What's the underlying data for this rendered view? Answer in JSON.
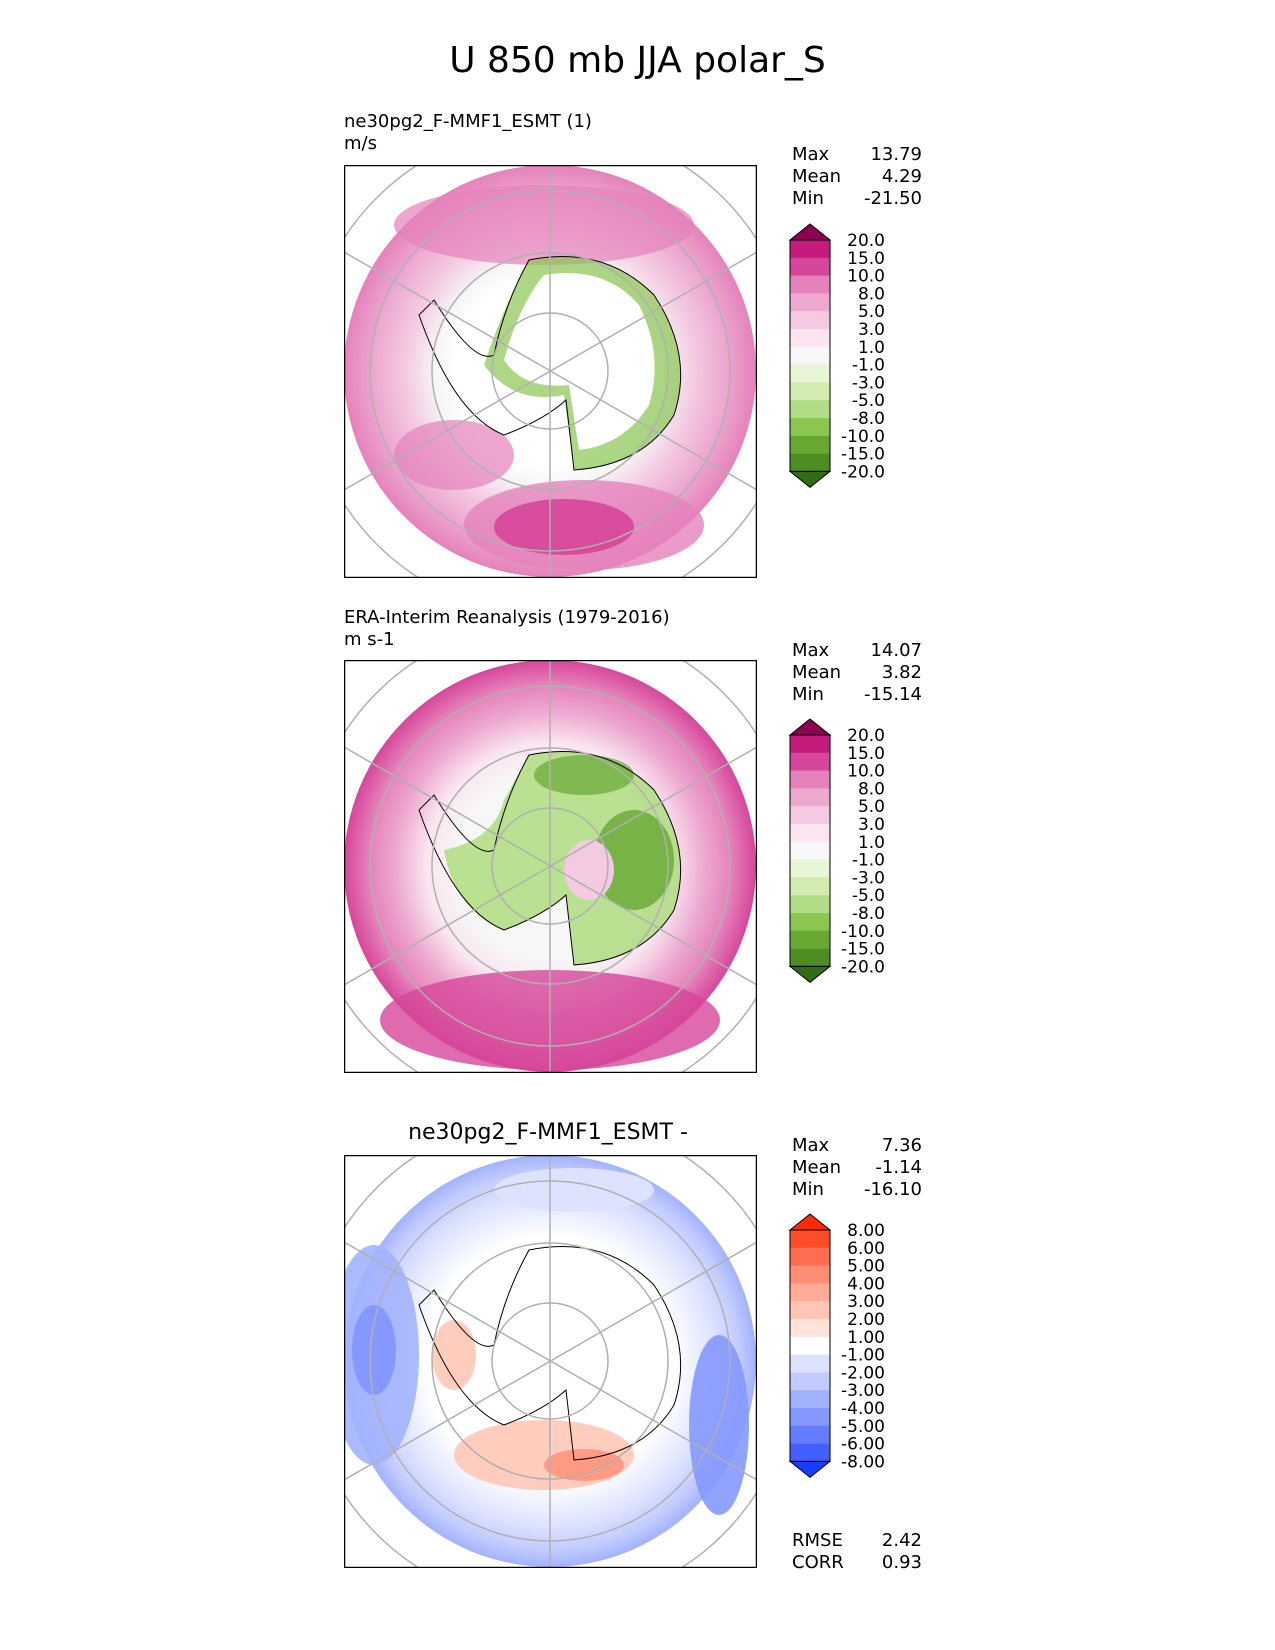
{
  "page_title": "U 850 mb JJA polar_S",
  "panels": [
    {
      "title_line1": "ne30pg2_F-MMF1_ESMT (1)",
      "title_line2": "m/s",
      "stats": {
        "labels": [
          "Max",
          "Mean",
          "Min"
        ],
        "values": [
          "13.79",
          "4.29",
          "-21.50"
        ]
      }
    },
    {
      "title_line1": "ERA-Interim Reanalysis (1979-2016)",
      "title_line2": "m s-1",
      "stats": {
        "labels": [
          "Max",
          "Mean",
          "Min"
        ],
        "values": [
          "14.07",
          "3.82",
          "-15.14"
        ]
      }
    },
    {
      "title_line1": "ne30pg2_F-MMF1_ESMT -",
      "stats": {
        "labels": [
          "Max",
          "Mean",
          "Min"
        ],
        "values": [
          "7.36",
          "-1.14",
          "-16.10"
        ]
      },
      "metrics": {
        "labels": [
          "RMSE",
          "CORR"
        ],
        "values": [
          "2.42",
          "0.93"
        ]
      }
    }
  ],
  "chart_data": [
    {
      "type": "heatmap",
      "projection": "south-polar-stereographic",
      "colorbar": {
        "levels": [
          "20.0",
          "15.0",
          "10.0",
          "8.0",
          "5.0",
          "3.0",
          "1.0",
          "-1.0",
          "-3.0",
          "-5.0",
          "-8.0",
          "-10.0",
          "-15.0",
          "-20.0"
        ],
        "colors": [
          "#8e0152",
          "#c51b7d",
          "#d6469a",
          "#e582bb",
          "#eda9d0",
          "#f4cae2",
          "#fae5f0",
          "#f7f7f7",
          "#e8f5d6",
          "#d2ecb0",
          "#b2dd86",
          "#8ac650",
          "#67a833",
          "#4d8d21",
          "#2f6d15"
        ]
      }
    },
    {
      "type": "heatmap",
      "projection": "south-polar-stereographic",
      "colorbar": {
        "levels": [
          "20.0",
          "15.0",
          "10.0",
          "8.0",
          "5.0",
          "3.0",
          "1.0",
          "-1.0",
          "-3.0",
          "-5.0",
          "-8.0",
          "-10.0",
          "-15.0",
          "-20.0"
        ],
        "colors": [
          "#8e0152",
          "#c51b7d",
          "#d6469a",
          "#e582bb",
          "#eda9d0",
          "#f4cae2",
          "#fae5f0",
          "#f7f7f7",
          "#e8f5d6",
          "#d2ecb0",
          "#b2dd86",
          "#8ac650",
          "#67a833",
          "#4d8d21",
          "#2f6d15"
        ]
      }
    },
    {
      "type": "heatmap",
      "projection": "south-polar-stereographic",
      "colorbar": {
        "levels": [
          "8.00",
          "6.00",
          "5.00",
          "4.00",
          "3.00",
          "2.00",
          "1.00",
          "-1.00",
          "-2.00",
          "-3.00",
          "-4.00",
          "-5.00",
          "-6.00",
          "-8.00"
        ],
        "colors": [
          "#ff2a00",
          "#ff4d2a",
          "#ff6d50",
          "#ff8e74",
          "#ffab96",
          "#ffc6b6",
          "#ffe2d8",
          "#ffffff",
          "#dde3ff",
          "#c1cbff",
          "#a3b2ff",
          "#8598ff",
          "#647cff",
          "#4360ff",
          "#1a3cff"
        ]
      }
    }
  ]
}
